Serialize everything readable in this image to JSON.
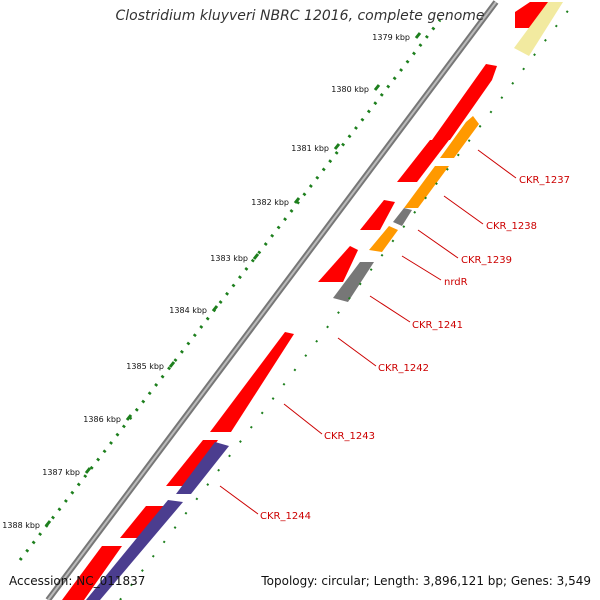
{
  "title": "Clostridium kluyveri NBRC 12016, complete genome",
  "accession": "Accession: NC_011837",
  "summary": "Topology: circular; Length: 3,896,121 bp; Genes: 3,549",
  "ruler_ticks": [
    "1379 kbp",
    "1380 kbp",
    "1381 kbp",
    "1382 kbp",
    "1383 kbp",
    "1384 kbp",
    "1385 kbp",
    "1386 kbp",
    "1387 kbp",
    "1388 kbp"
  ],
  "gene_labels": [
    "CKR_1237",
    "CKR_1238",
    "CKR_1239",
    "nrdR",
    "CKR_1241",
    "CKR_1242",
    "CKR_1243",
    "CKR_1244"
  ],
  "colors": {
    "cds_red": "#ff0000",
    "orange": "#ff9900",
    "gray": "#777777",
    "purple": "#4b3d8f",
    "pale_yellow": "#f2eaa0",
    "green": "#1d7f1d",
    "label_red": "#cc0000",
    "backbone": "#777777"
  }
}
